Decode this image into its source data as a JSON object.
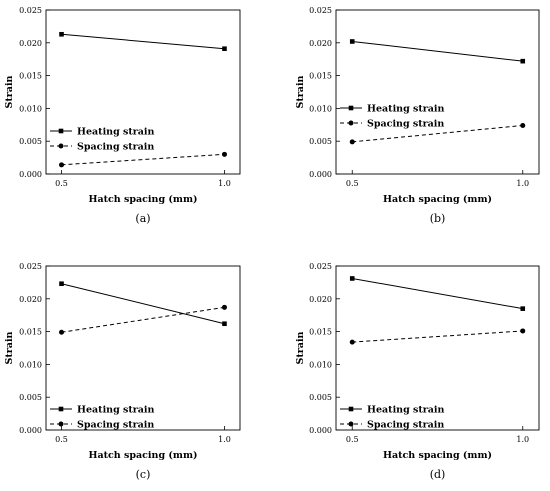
{
  "chart_data": [
    {
      "type": "line",
      "panel_label": "(a)",
      "xlabel": "Hatch spacing (mm)",
      "ylabel": "Strain",
      "x": [
        0.5,
        1.0
      ],
      "x_ticks": [
        "0.5",
        "1.0"
      ],
      "ylim": [
        0,
        0.025
      ],
      "y_ticks": [
        "0.000",
        "0.005",
        "0.010",
        "0.015",
        "0.020",
        "0.025"
      ],
      "legend_position": "bottom-left",
      "series": [
        {
          "name": "Heating strain",
          "values": [
            0.0213,
            0.0191
          ],
          "style": "solid",
          "marker": "square"
        },
        {
          "name": "Spacing strain",
          "values": [
            0.0014,
            0.003
          ],
          "style": "dashed",
          "marker": "circle"
        }
      ]
    },
    {
      "type": "line",
      "panel_label": "(b)",
      "xlabel": "Hatch spacing (mm)",
      "ylabel": "Strain",
      "x": [
        0.5,
        1.0
      ],
      "x_ticks": [
        "0.5",
        "1.0"
      ],
      "ylim": [
        0,
        0.025
      ],
      "y_ticks": [
        "0.000",
        "0.005",
        "0.010",
        "0.015",
        "0.020",
        "0.025"
      ],
      "legend_position": "middle-left",
      "series": [
        {
          "name": "Heating strain",
          "values": [
            0.0202,
            0.0172
          ],
          "style": "solid",
          "marker": "square"
        },
        {
          "name": "Spacing strain",
          "values": [
            0.0049,
            0.0074
          ],
          "style": "dashed",
          "marker": "circle"
        }
      ]
    },
    {
      "type": "line",
      "panel_label": "(c)",
      "xlabel": "Hatch spacing (mm)",
      "ylabel": "Strain",
      "x": [
        0.5,
        1.0
      ],
      "x_ticks": [
        "0.5",
        "1.0"
      ],
      "ylim": [
        0,
        0.025
      ],
      "y_ticks": [
        "0.000",
        "0.005",
        "0.010",
        "0.015",
        "0.020",
        "0.025"
      ],
      "legend_position": "bottom-left",
      "series": [
        {
          "name": "Heating strain",
          "values": [
            0.0223,
            0.0162
          ],
          "style": "solid",
          "marker": "square"
        },
        {
          "name": "Spacing strain",
          "values": [
            0.0149,
            0.0187
          ],
          "style": "dashed",
          "marker": "circle"
        }
      ]
    },
    {
      "type": "line",
      "panel_label": "(d)",
      "xlabel": "Hatch spacing (mm)",
      "ylabel": "Strain",
      "x": [
        0.5,
        1.0
      ],
      "x_ticks": [
        "0.5",
        "1.0"
      ],
      "ylim": [
        0,
        0.025
      ],
      "y_ticks": [
        "0.000",
        "0.005",
        "0.010",
        "0.015",
        "0.020",
        "0.025"
      ],
      "legend_position": "bottom-left",
      "series": [
        {
          "name": "Heating strain",
          "values": [
            0.0231,
            0.0185
          ],
          "style": "solid",
          "marker": "square"
        },
        {
          "name": "Spacing strain",
          "values": [
            0.0134,
            0.0151
          ],
          "style": "dashed",
          "marker": "circle"
        }
      ]
    }
  ]
}
